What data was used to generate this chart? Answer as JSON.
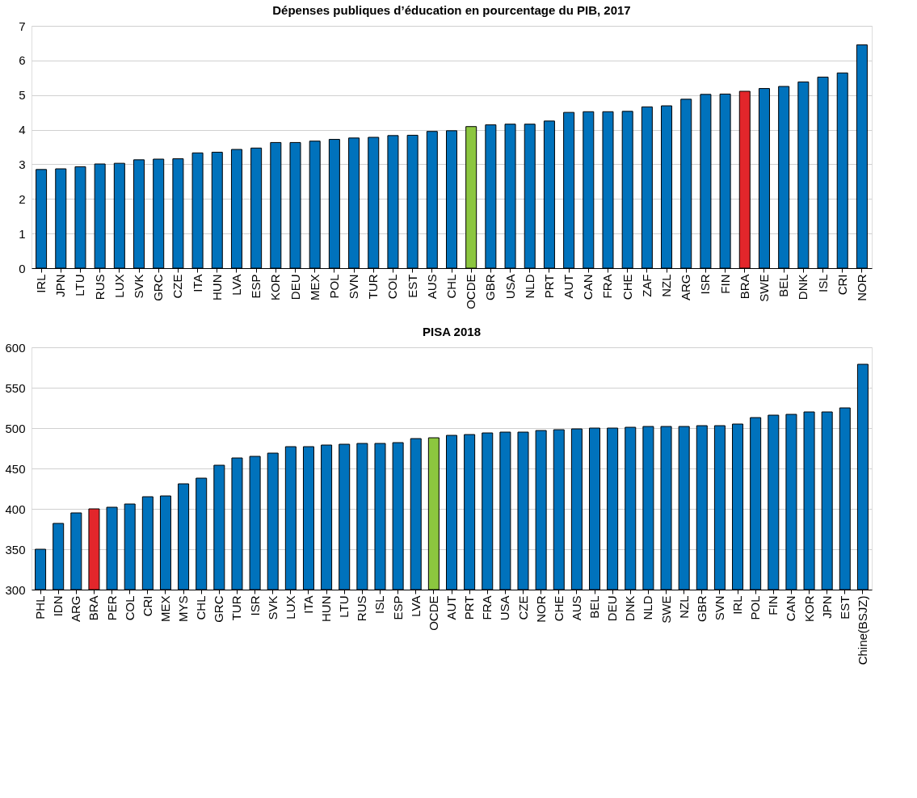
{
  "chart_data": [
    {
      "type": "bar",
      "title": "Dépenses publiques d’éducation en pourcentage du PIB, 2017",
      "categories": [
        "IRL",
        "JPN",
        "LTU",
        "RUS",
        "LUX",
        "SVK",
        "GRC",
        "CZE",
        "ITA",
        "HUN",
        "LVA",
        "ESP",
        "KOR",
        "DEU",
        "MEX",
        "POL",
        "SVN",
        "TUR",
        "COL",
        "EST",
        "AUS",
        "CHL",
        "OCDE",
        "GBR",
        "USA",
        "NLD",
        "PRT",
        "AUT",
        "CAN",
        "FRA",
        "CHE",
        "ZAF",
        "NZL",
        "ARG",
        "ISR",
        "FIN",
        "BRA",
        "SWE",
        "BEL",
        "DNK",
        "ISL",
        "CRI",
        "NOR"
      ],
      "values": [
        2.85,
        2.87,
        2.93,
        3.01,
        3.03,
        3.13,
        3.15,
        3.16,
        3.33,
        3.35,
        3.43,
        3.47,
        3.63,
        3.63,
        3.67,
        3.72,
        3.76,
        3.78,
        3.83,
        3.84,
        3.95,
        3.97,
        4.09,
        4.14,
        4.16,
        4.16,
        4.25,
        4.5,
        4.52,
        4.52,
        4.53,
        4.66,
        4.69,
        4.88,
        5.02,
        5.03,
        5.11,
        5.19,
        5.25,
        5.38,
        5.52,
        5.64,
        6.45
      ],
      "colors": [
        "#0072bc",
        "#0072bc",
        "#0072bc",
        "#0072bc",
        "#0072bc",
        "#0072bc",
        "#0072bc",
        "#0072bc",
        "#0072bc",
        "#0072bc",
        "#0072bc",
        "#0072bc",
        "#0072bc",
        "#0072bc",
        "#0072bc",
        "#0072bc",
        "#0072bc",
        "#0072bc",
        "#0072bc",
        "#0072bc",
        "#0072bc",
        "#0072bc",
        "#8cc63f",
        "#0072bc",
        "#0072bc",
        "#0072bc",
        "#0072bc",
        "#0072bc",
        "#0072bc",
        "#0072bc",
        "#0072bc",
        "#0072bc",
        "#0072bc",
        "#0072bc",
        "#0072bc",
        "#0072bc",
        "#e3262b",
        "#0072bc",
        "#0072bc",
        "#0072bc",
        "#0072bc",
        "#0072bc",
        "#0072bc"
      ],
      "ylim": [
        0,
        7
      ],
      "yticks": [
        0,
        1,
        2,
        3,
        4,
        5,
        6,
        7
      ],
      "grid": "y"
    },
    {
      "type": "bar",
      "title": "PISA 2018",
      "categories": [
        "PHL",
        "IDN",
        "ARG",
        "BRA",
        "PER",
        "COL",
        "CRI",
        "MEX",
        "MYS",
        "CHL",
        "GRC",
        "TUR",
        "ISR",
        "SVK",
        "LUX",
        "ITA",
        "HUN",
        "LTU",
        "RUS",
        "ISL",
        "ESP",
        "LVA",
        "OCDE",
        "AUT",
        "PRT",
        "FRA",
        "USA",
        "CZE",
        "NOR",
        "CHE",
        "AUS",
        "BEL",
        "DEU",
        "DNK",
        "NLD",
        "SWE",
        "NZL",
        "GBR",
        "SVN",
        "IRL",
        "POL",
        "FIN",
        "CAN",
        "KOR",
        "JPN",
        "EST",
        "Chine(BSJZ)"
      ],
      "values": [
        350,
        382,
        395,
        400,
        402,
        406,
        415,
        416,
        431,
        438,
        454,
        463,
        465,
        469,
        477,
        477,
        479,
        480,
        481,
        481,
        482,
        487,
        488,
        491,
        492,
        494,
        495,
        495,
        497,
        498,
        499,
        500,
        500,
        501,
        502,
        502,
        502,
        503,
        503,
        505,
        513,
        516,
        517,
        520,
        520,
        525,
        579
      ],
      "colors": [
        "#0072bc",
        "#0072bc",
        "#0072bc",
        "#e3262b",
        "#0072bc",
        "#0072bc",
        "#0072bc",
        "#0072bc",
        "#0072bc",
        "#0072bc",
        "#0072bc",
        "#0072bc",
        "#0072bc",
        "#0072bc",
        "#0072bc",
        "#0072bc",
        "#0072bc",
        "#0072bc",
        "#0072bc",
        "#0072bc",
        "#0072bc",
        "#0072bc",
        "#8cc63f",
        "#0072bc",
        "#0072bc",
        "#0072bc",
        "#0072bc",
        "#0072bc",
        "#0072bc",
        "#0072bc",
        "#0072bc",
        "#0072bc",
        "#0072bc",
        "#0072bc",
        "#0072bc",
        "#0072bc",
        "#0072bc",
        "#0072bc",
        "#0072bc",
        "#0072bc",
        "#0072bc",
        "#0072bc",
        "#0072bc",
        "#0072bc",
        "#0072bc",
        "#0072bc",
        "#0072bc"
      ],
      "ylim": [
        300,
        600
      ],
      "yticks": [
        300,
        350,
        400,
        450,
        500,
        550,
        600
      ],
      "grid": "y"
    }
  ]
}
